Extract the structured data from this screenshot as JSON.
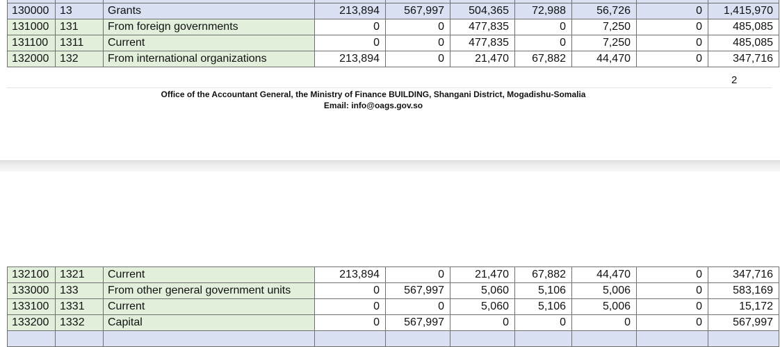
{
  "top_rows": [
    {
      "code": "130000",
      "sub": "13",
      "desc": "Grants",
      "v1": "213,894",
      "v2": "567,997",
      "v3": "504,365",
      "v4": "72,988",
      "v5": "56,726",
      "v6": "0",
      "total": "1,415,970",
      "style": "blue"
    },
    {
      "code": "131000",
      "sub": "131",
      "desc": "From foreign governments",
      "v1": "0",
      "v2": "0",
      "v3": "477,835",
      "v4": "0",
      "v5": "7,250",
      "v6": "0",
      "total": "485,085",
      "style": "green"
    },
    {
      "code": "131100",
      "sub": "1311",
      "desc": "Current",
      "v1": "0",
      "v2": "0",
      "v3": "477,835",
      "v4": "0",
      "v5": "7,250",
      "v6": "0",
      "total": "485,085",
      "style": "green"
    },
    {
      "code": "132000",
      "sub": "132",
      "desc": "From international organizations",
      "v1": "213,894",
      "v2": "0",
      "v3": "21,470",
      "v4": "67,882",
      "v5": "44,470",
      "v6": "0",
      "total": "347,716",
      "style": "green"
    }
  ],
  "page_number": "2",
  "footer": {
    "line1": "Office of the Accountant General, the Ministry of Finance BUILDING, Shangani District, Mogadishu-Somalia",
    "line2": "Email: info@oags.gov.so"
  },
  "bottom_rows": [
    {
      "code": "132100",
      "sub": "1321",
      "desc": "Current",
      "v1": "213,894",
      "v2": "0",
      "v3": "21,470",
      "v4": "67,882",
      "v5": "44,470",
      "v6": "0",
      "total": "347,716",
      "style": "green"
    },
    {
      "code": "133000",
      "sub": "133",
      "desc": "From other general government units",
      "v1": "0",
      "v2": "567,997",
      "v3": "5,060",
      "v4": "5,106",
      "v5": "5,006",
      "v6": "0",
      "total": "583,169",
      "style": "green"
    },
    {
      "code": "133100",
      "sub": "1331",
      "desc": "Current",
      "v1": "0",
      "v2": "0",
      "v3": "5,060",
      "v4": "5,106",
      "v5": "5,006",
      "v6": "0",
      "total": "15,172",
      "style": "green"
    },
    {
      "code": "133200",
      "sub": "1332",
      "desc": "Capital",
      "v1": "0",
      "v2": "567,997",
      "v3": "0",
      "v4": "0",
      "v5": "0",
      "v6": "0",
      "total": "567,997",
      "style": "green"
    }
  ]
}
